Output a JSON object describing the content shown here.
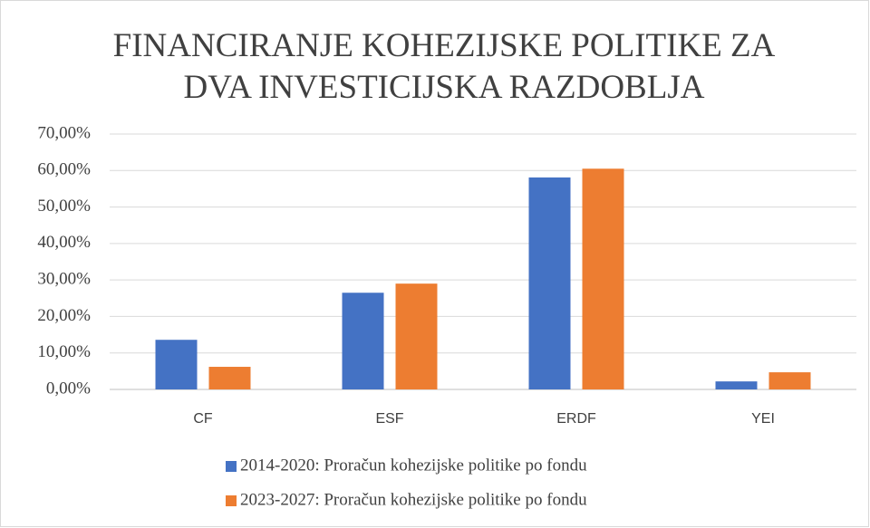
{
  "chart_data": {
    "type": "bar",
    "title": "FINANCIRANJE KOHEZIJSKE POLITIKE ZA DVA INVESTICIJSKA RAZDOBLJA",
    "categories": [
      "CF",
      "ESF",
      "ERDF",
      "YEI"
    ],
    "series": [
      {
        "name": "2014-2020: Proračun kohezijske politike po fondu",
        "color": "#4472c4",
        "values": [
          13.6,
          26.5,
          58.1,
          2.2
        ]
      },
      {
        "name": "2023-2027: Proračun kohezijske politike po fondu",
        "color": "#ed7d31",
        "values": [
          6.2,
          29.0,
          60.5,
          4.7
        ]
      }
    ],
    "ylim": [
      0,
      70
    ],
    "yticks": [
      {
        "value": 0,
        "label": "0,00%"
      },
      {
        "value": 10,
        "label": "10,00%"
      },
      {
        "value": 20,
        "label": "20,00%"
      },
      {
        "value": 30,
        "label": "30,00%"
      },
      {
        "value": 40,
        "label": "40,00%"
      },
      {
        "value": 50,
        "label": "50,00%"
      },
      {
        "value": 60,
        "label": "60,00%"
      },
      {
        "value": 70,
        "label": "70,00%"
      }
    ],
    "grid": true,
    "legend": "bottom"
  }
}
